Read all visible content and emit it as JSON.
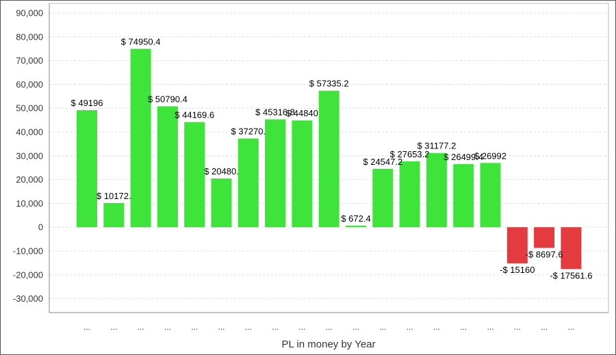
{
  "chart_data": {
    "type": "bar",
    "title": "",
    "xlabel": "PL in money by Year",
    "ylabel": "",
    "ylim": [
      -35000,
      90000
    ],
    "y_ticks": [
      90000,
      80000,
      70000,
      60000,
      50000,
      40000,
      30000,
      20000,
      10000,
      0,
      -10000,
      -20000,
      -30000
    ],
    "y_tick_labels": [
      "90,000",
      "80,000",
      "70,000",
      "60,000",
      "50,000",
      "40,000",
      "30,000",
      "20,000",
      "10,000",
      "0",
      "-10,000",
      "-20,000",
      "-30,000"
    ],
    "grid": true,
    "categories": [
      "...",
      "...",
      "...",
      "...",
      "...",
      "...",
      "...",
      "...",
      "...",
      "...",
      "...",
      "...",
      "...",
      "...",
      "...",
      "...",
      "...",
      "...",
      "..."
    ],
    "values": [
      49196,
      10172,
      74950.4,
      50790.4,
      44169.6,
      20480,
      37270,
      45316.8,
      44840,
      57335.2,
      672.4,
      24547.2,
      27653.2,
      31177.2,
      26499.4,
      26992,
      -15160,
      -8697.6,
      -17561.6
    ],
    "data_labels": [
      "$ 49196",
      "$ 10172.",
      "$ 74950.4",
      "$ 50790.4",
      "$ 44169.6",
      "$ 20480.",
      "$ 37270.",
      "$ 45316.8",
      "$ 44840",
      "$ 57335.2",
      "$ 672.4",
      "$ 24547.2",
      "$ 27653.2",
      "$ 31177.2",
      "$ 26499.4",
      "$ 26992",
      "-$ 15160",
      "-$ 8697.6",
      "-$ 17561.6"
    ],
    "colors": {
      "positive": "#3ee43a",
      "negative": "#e33b3f",
      "grid": "#dddddd",
      "axis": "#888888"
    }
  }
}
